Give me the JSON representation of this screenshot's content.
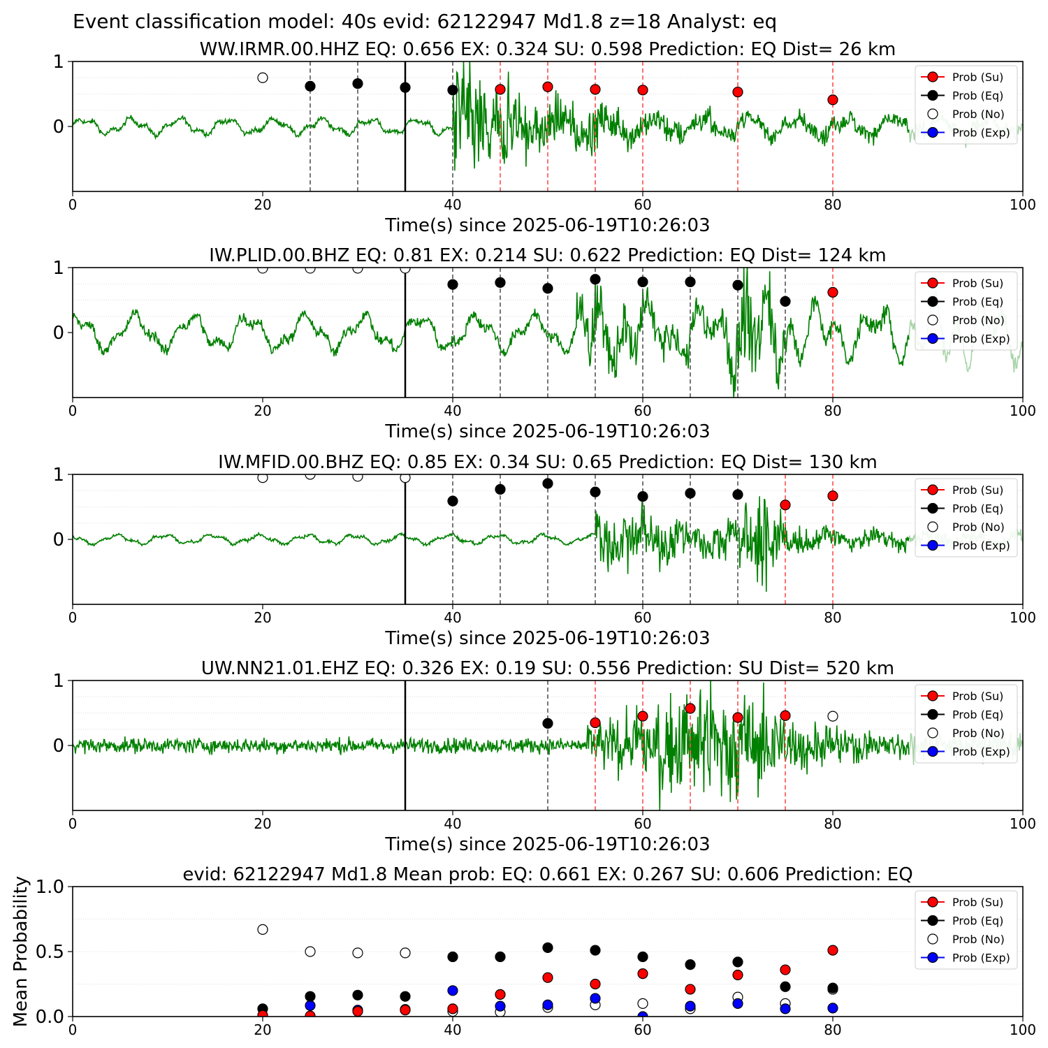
{
  "figure": {
    "title": "Event classification model: 40s evid: 62122947 Md1.8 z=18 Analyst: eq"
  },
  "legend": {
    "entries": [
      "Prob (Su)",
      "Prob (Eq)",
      "Prob (No)",
      "Prob (Exp)"
    ],
    "colors": [
      "#ff0000",
      "#000000",
      "#ffffff",
      "#0000ff"
    ],
    "placement": "top-right"
  },
  "colors": {
    "waveform": "#008000",
    "waveform_faded": "#c8e6c8",
    "eq_window_line": "#555555",
    "su_window_line": "#ff4d4d",
    "origin_line": "#000000"
  },
  "chart_data": [
    {
      "type": "line",
      "title": "WW.IRMR.00.HHZ   EQ: 0.656  EX: 0.324  SU: 0.598   Prediction: EQ    Dist= 26 km",
      "xlabel": "Time(s) since 2025-06-19T10:26:03",
      "ylabel": "",
      "xlim": [
        0,
        100
      ],
      "ylim": [
        -1,
        1
      ],
      "xticks": [
        "0",
        "20",
        "40",
        "60",
        "80",
        "100"
      ],
      "yticks": [
        "0",
        "1"
      ],
      "grid": "horizontal dotted",
      "origin_time": 35,
      "eq_windows": [
        25,
        30,
        40
      ],
      "su_windows": [
        45,
        50,
        55,
        60,
        70,
        80
      ],
      "signal_onset": 40,
      "noise_amp": 0.1,
      "noise_period": 5,
      "signal_amp": 0.85,
      "prob_su": [
        [
          45,
          0.57
        ],
        [
          50,
          0.61
        ],
        [
          55,
          0.57
        ],
        [
          60,
          0.56
        ],
        [
          70,
          0.53
        ],
        [
          80,
          0.41
        ]
      ],
      "prob_eq": [
        [
          25,
          0.62
        ],
        [
          30,
          0.66
        ],
        [
          35,
          0.6
        ],
        [
          40,
          0.56
        ]
      ],
      "prob_no": [
        [
          20,
          0.75
        ]
      ],
      "prob_exp": []
    },
    {
      "type": "line",
      "title": "IW.PLID.00.BHZ   EQ: 0.81  EX: 0.214  SU: 0.622   Prediction: EQ    Dist= 124 km",
      "xlabel": "Time(s) since 2025-06-19T10:26:03",
      "ylabel": "",
      "xlim": [
        0,
        100
      ],
      "ylim": [
        -1,
        1
      ],
      "xticks": [
        "0",
        "20",
        "40",
        "60",
        "80",
        "100"
      ],
      "yticks": [
        "0",
        "1"
      ],
      "grid": "horizontal dotted",
      "origin_time": 35,
      "eq_windows": [
        40,
        45,
        50,
        55,
        60,
        65,
        70,
        75
      ],
      "su_windows": [
        80
      ],
      "signal_onset": 53,
      "noise_amp": 0.22,
      "noise_period": 6,
      "signal_amp": 0.55,
      "prob_su": [
        [
          80,
          0.62
        ]
      ],
      "prob_eq": [
        [
          40,
          0.74
        ],
        [
          45,
          0.77
        ],
        [
          50,
          0.68
        ],
        [
          55,
          0.82
        ],
        [
          60,
          0.78
        ],
        [
          65,
          0.78
        ],
        [
          70,
          0.73
        ],
        [
          75,
          0.48
        ]
      ],
      "prob_no": [
        [
          20,
          0.99
        ],
        [
          25,
          0.99
        ],
        [
          30,
          0.99
        ],
        [
          35,
          0.99
        ]
      ],
      "prob_exp": []
    },
    {
      "type": "line",
      "title": "IW.MFID.00.BHZ   EQ: 0.85  EX: 0.34  SU: 0.65   Prediction: EQ    Dist= 130 km",
      "xlabel": "Time(s) since 2025-06-19T10:26:03",
      "ylabel": "",
      "xlim": [
        0,
        100
      ],
      "ylim": [
        -1,
        1
      ],
      "xticks": [
        "0",
        "20",
        "40",
        "60",
        "80",
        "100"
      ],
      "yticks": [
        "0",
        "1"
      ],
      "grid": "horizontal dotted",
      "origin_time": 35,
      "eq_windows": [
        40,
        45,
        50,
        55,
        60,
        65,
        70
      ],
      "su_windows": [
        75,
        80
      ],
      "signal_onset": 55,
      "noise_amp": 0.06,
      "noise_period": 5,
      "signal_amp": 0.6,
      "prob_su": [
        [
          75,
          0.53
        ],
        [
          80,
          0.67
        ]
      ],
      "prob_eq": [
        [
          40,
          0.59
        ],
        [
          45,
          0.77
        ],
        [
          50,
          0.86
        ],
        [
          55,
          0.73
        ],
        [
          60,
          0.66
        ],
        [
          65,
          0.71
        ],
        [
          70,
          0.69
        ]
      ],
      "prob_no": [
        [
          20,
          0.95
        ],
        [
          25,
          1.0
        ],
        [
          30,
          0.97
        ],
        [
          35,
          0.95
        ]
      ],
      "prob_exp": []
    },
    {
      "type": "line",
      "title": "UW.NN21.01.EHZ   EQ: 0.326  EX: 0.19  SU: 0.556   Prediction: SU    Dist= 520 km",
      "xlabel": "Time(s) since 2025-06-19T10:26:03",
      "ylabel": "",
      "xlim": [
        0,
        100
      ],
      "ylim": [
        -1,
        1
      ],
      "xticks": [
        "0",
        "20",
        "40",
        "60",
        "80",
        "100"
      ],
      "yticks": [
        "0",
        "1"
      ],
      "grid": "horizontal dotted",
      "origin_time": 35,
      "eq_windows": [
        50
      ],
      "su_windows": [
        55,
        60,
        65,
        70,
        75
      ],
      "signal_onset": 54,
      "noise_amp": 0.06,
      "noise_period": 1,
      "signal_amp": 0.7,
      "prob_su": [
        [
          55,
          0.35
        ],
        [
          60,
          0.45
        ],
        [
          65,
          0.57
        ],
        [
          70,
          0.43
        ],
        [
          75,
          0.46
        ]
      ],
      "prob_eq": [
        [
          50,
          0.34
        ]
      ],
      "prob_no": [
        [
          80,
          0.45
        ]
      ],
      "prob_exp": []
    },
    {
      "type": "scatter",
      "title": "evid: 62122947  Md1.8   Mean prob:   EQ: 0.661  EX: 0.267  SU: 0.606   Prediction: EQ",
      "xlabel": "",
      "ylabel": "Mean Probability",
      "xlim": [
        0,
        100
      ],
      "ylim": [
        0,
        1
      ],
      "xticks": [
        "0",
        "20",
        "40",
        "60",
        "80",
        "100"
      ],
      "yticks": [
        "0.0",
        "0.5",
        "1.0"
      ],
      "grid": "horizontal dotted",
      "prob_su": [
        [
          20,
          0.01
        ],
        [
          25,
          0.005
        ],
        [
          30,
          0.04
        ],
        [
          35,
          0.05
        ],
        [
          40,
          0.06
        ],
        [
          45,
          0.17
        ],
        [
          50,
          0.3
        ],
        [
          55,
          0.25
        ],
        [
          60,
          0.33
        ],
        [
          65,
          0.21
        ],
        [
          70,
          0.32
        ],
        [
          75,
          0.36
        ],
        [
          80,
          0.51
        ]
      ],
      "prob_eq": [
        [
          20,
          0.06
        ],
        [
          25,
          0.155
        ],
        [
          30,
          0.165
        ],
        [
          35,
          0.155
        ],
        [
          40,
          0.46
        ],
        [
          45,
          0.46
        ],
        [
          50,
          0.53
        ],
        [
          55,
          0.51
        ],
        [
          60,
          0.46
        ],
        [
          65,
          0.4
        ],
        [
          70,
          0.42
        ],
        [
          75,
          0.23
        ],
        [
          80,
          0.22
        ]
      ],
      "prob_no": [
        [
          20,
          0.67
        ],
        [
          25,
          0.5
        ],
        [
          30,
          0.49
        ],
        [
          35,
          0.49
        ],
        [
          40,
          0.04
        ],
        [
          45,
          0.035
        ],
        [
          50,
          0.07
        ],
        [
          55,
          0.09
        ],
        [
          60,
          0.1
        ],
        [
          65,
          0.06
        ],
        [
          70,
          0.15
        ],
        [
          75,
          0.1
        ],
        [
          80,
          0.21
        ]
      ],
      "prob_exp": [
        [
          20,
          0.0
        ],
        [
          25,
          0.085
        ],
        [
          30,
          0.05
        ],
        [
          35,
          0.055
        ],
        [
          40,
          0.2
        ],
        [
          45,
          0.08
        ],
        [
          50,
          0.09
        ],
        [
          55,
          0.14
        ],
        [
          60,
          0.0
        ],
        [
          65,
          0.08
        ],
        [
          70,
          0.1
        ],
        [
          75,
          0.06
        ],
        [
          80,
          0.065
        ]
      ]
    }
  ]
}
